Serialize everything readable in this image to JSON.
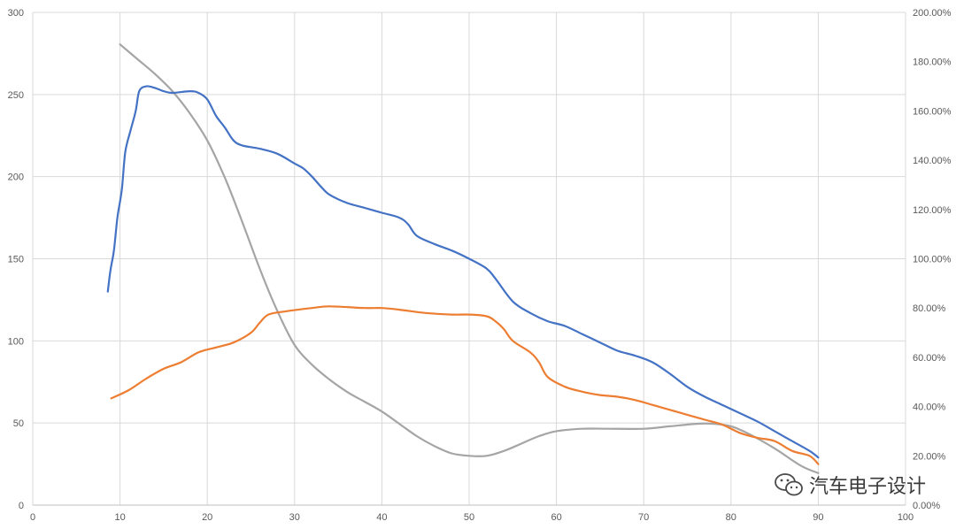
{
  "chart_data": {
    "type": "line",
    "title": "",
    "xlabel": "",
    "ylabel": "",
    "xlim": [
      0,
      100
    ],
    "ylim": [
      0,
      300
    ],
    "y2lim": [
      0,
      2.0
    ],
    "grid": true,
    "legend": "none",
    "x_ticks": [
      "0",
      "10",
      "20",
      "30",
      "40",
      "50",
      "60",
      "70",
      "80",
      "90",
      "100"
    ],
    "y_ticks": [
      "0",
      "50",
      "100",
      "150",
      "200",
      "250",
      "300"
    ],
    "y2_ticks": [
      "0.00%",
      "20.00%",
      "40.00%",
      "60.00%",
      "80.00%",
      "100.00%",
      "120.00%",
      "140.00%",
      "160.00%",
      "180.00%",
      "200.00%"
    ],
    "series": [
      {
        "axis": "left",
        "color": "#4472c4",
        "points": [
          [
            8.6,
            130
          ],
          [
            8.9,
            143
          ],
          [
            9.3,
            155
          ],
          [
            9.7,
            175
          ],
          [
            10.2,
            192
          ],
          [
            10.6,
            215
          ],
          [
            11.2,
            228
          ],
          [
            11.8,
            240
          ],
          [
            12.2,
            252
          ],
          [
            13,
            255
          ],
          [
            14,
            254
          ],
          [
            15,
            252
          ],
          [
            16,
            251
          ],
          [
            18,
            252
          ],
          [
            19,
            251
          ],
          [
            20,
            247
          ],
          [
            21,
            237
          ],
          [
            22,
            230
          ],
          [
            23,
            222
          ],
          [
            24,
            219
          ],
          [
            26,
            217
          ],
          [
            28,
            214
          ],
          [
            30,
            208
          ],
          [
            31,
            205
          ],
          [
            32,
            200
          ],
          [
            33,
            194
          ],
          [
            34,
            189
          ],
          [
            36,
            184
          ],
          [
            38,
            181
          ],
          [
            40,
            178
          ],
          [
            42,
            175
          ],
          [
            43,
            171
          ],
          [
            44,
            164
          ],
          [
            46,
            159
          ],
          [
            48,
            155
          ],
          [
            50,
            150
          ],
          [
            52,
            144
          ],
          [
            53,
            138
          ],
          [
            55,
            124
          ],
          [
            57,
            117
          ],
          [
            59,
            112
          ],
          [
            61,
            109
          ],
          [
            63,
            104
          ],
          [
            65,
            99
          ],
          [
            67,
            94
          ],
          [
            69,
            91
          ],
          [
            71,
            87
          ],
          [
            73,
            80
          ],
          [
            75,
            72
          ],
          [
            77,
            66
          ],
          [
            79,
            61
          ],
          [
            81,
            56
          ],
          [
            83,
            51
          ],
          [
            85,
            45
          ],
          [
            87,
            39
          ],
          [
            89,
            33
          ],
          [
            90,
            29
          ]
        ]
      },
      {
        "axis": "left",
        "color": "#ed7d31",
        "points": [
          [
            9,
            65
          ],
          [
            11,
            70
          ],
          [
            13,
            77
          ],
          [
            15,
            83
          ],
          [
            17,
            87
          ],
          [
            19,
            93
          ],
          [
            21,
            96
          ],
          [
            23,
            99
          ],
          [
            25,
            105
          ],
          [
            26,
            111
          ],
          [
            27,
            116
          ],
          [
            29,
            118
          ],
          [
            32,
            120
          ],
          [
            34,
            121
          ],
          [
            38,
            120
          ],
          [
            40,
            120
          ],
          [
            42,
            119
          ],
          [
            45,
            117
          ],
          [
            48,
            116
          ],
          [
            50,
            116
          ],
          [
            52,
            115
          ],
          [
            53,
            112
          ],
          [
            54,
            107
          ],
          [
            55,
            100
          ],
          [
            57,
            93
          ],
          [
            58,
            87
          ],
          [
            59,
            78
          ],
          [
            61,
            72
          ],
          [
            63,
            69
          ],
          [
            65,
            67
          ],
          [
            67,
            66
          ],
          [
            69,
            64
          ],
          [
            71,
            61
          ],
          [
            73,
            58
          ],
          [
            75,
            55
          ],
          [
            77,
            52
          ],
          [
            79,
            49
          ],
          [
            81,
            44
          ],
          [
            83,
            41
          ],
          [
            85,
            39
          ],
          [
            87,
            33
          ],
          [
            89,
            30
          ],
          [
            90,
            25
          ]
        ]
      },
      {
        "axis": "right",
        "color": "#a5a5a5",
        "points": [
          [
            10,
            1.87
          ],
          [
            12,
            1.81
          ],
          [
            14,
            1.75
          ],
          [
            16,
            1.68
          ],
          [
            18,
            1.59
          ],
          [
            20,
            1.48
          ],
          [
            22,
            1.33
          ],
          [
            24,
            1.15
          ],
          [
            26,
            0.96
          ],
          [
            28,
            0.79
          ],
          [
            30,
            0.65
          ],
          [
            32,
            0.57
          ],
          [
            34,
            0.51
          ],
          [
            36,
            0.46
          ],
          [
            38,
            0.42
          ],
          [
            40,
            0.38
          ],
          [
            42,
            0.33
          ],
          [
            44,
            0.28
          ],
          [
            46,
            0.24
          ],
          [
            48,
            0.21
          ],
          [
            50,
            0.2
          ],
          [
            52,
            0.2
          ],
          [
            54,
            0.22
          ],
          [
            56,
            0.25
          ],
          [
            58,
            0.28
          ],
          [
            60,
            0.3
          ],
          [
            63,
            0.31
          ],
          [
            66,
            0.31
          ],
          [
            70,
            0.31
          ],
          [
            73,
            0.32
          ],
          [
            76,
            0.33
          ],
          [
            78,
            0.33
          ],
          [
            80,
            0.32
          ],
          [
            82,
            0.29
          ],
          [
            85,
            0.23
          ],
          [
            88,
            0.16
          ],
          [
            90,
            0.13
          ]
        ]
      }
    ]
  },
  "watermark": {
    "text": "汽车电子设计"
  }
}
